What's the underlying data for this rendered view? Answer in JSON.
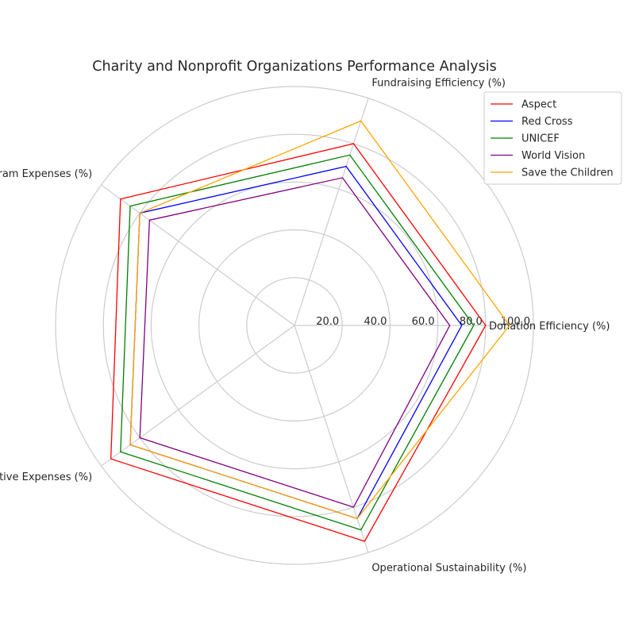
{
  "chart_data": {
    "type": "radar",
    "title": "Charity and Nonprofit Organizations Performance Analysis",
    "categories": [
      "Donation Efficiency (%)",
      "Fundraising Efficiency (%)",
      "Program Expenses (%)",
      "Administrative Expenses (%)",
      "Operational Sustainability (%)"
    ],
    "rlim": [
      0,
      100
    ],
    "rticks": [
      20,
      40,
      60,
      80,
      100
    ],
    "rtick_labels": [
      "20.0",
      "40.0",
      "60.0",
      "80.0",
      "100.0"
    ],
    "grid": true,
    "legend_position": "top-right",
    "series": [
      {
        "name": "Aspect",
        "color": "#ff0000",
        "values": [
          80,
          80,
          90,
          95,
          95
        ]
      },
      {
        "name": "Red Cross",
        "color": "#0000ff",
        "values": [
          70,
          70,
          80,
          85,
          85
        ]
      },
      {
        "name": "UNICEF",
        "color": "#008000",
        "values": [
          75,
          75,
          85,
          90,
          90
        ]
      },
      {
        "name": "World Vision",
        "color": "#800080",
        "values": [
          65,
          65,
          75,
          80,
          80
        ]
      },
      {
        "name": "Save the Children",
        "color": "#ffa500",
        "values": [
          90,
          90,
          80,
          85,
          85
        ]
      }
    ]
  }
}
